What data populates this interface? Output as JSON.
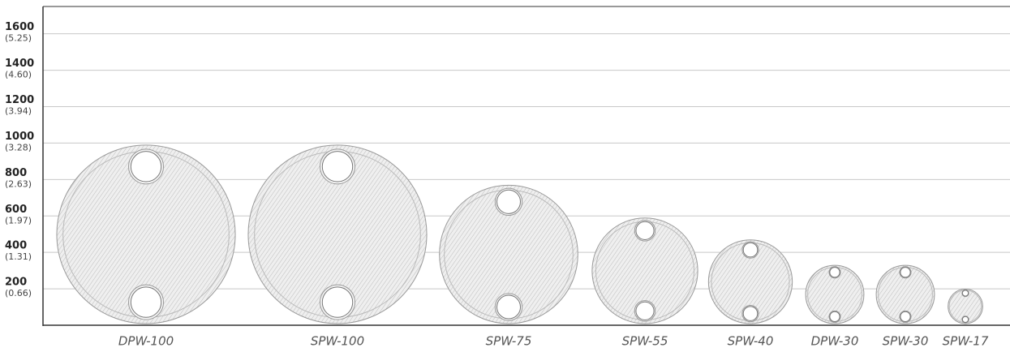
{
  "chart_data": {
    "type": "plates",
    "categories": [
      "DPW-100",
      "SPW-100",
      "SPW-75",
      "SPW-55",
      "SPW-40",
      "DPW-30",
      "SPW-30",
      "SPW-17"
    ],
    "values": [
      980,
      980,
      760,
      580,
      460,
      320,
      320,
      190
    ],
    "color": "#d9d9d9",
    "ylim": [
      0,
      1750
    ],
    "yticks": [
      200,
      400,
      600,
      800,
      1000,
      1200,
      1400,
      1600
    ],
    "ytick_sublabels": [
      "(0.66)",
      "(1.31)",
      "(1.97)",
      "(2.63)",
      "(3.28)",
      "(3.94)",
      "(4.60)",
      "(5.25)"
    ],
    "grid": true
  }
}
